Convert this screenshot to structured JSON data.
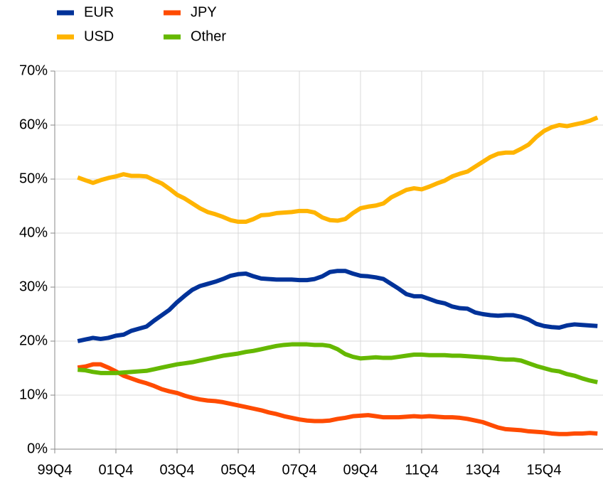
{
  "chart_data": {
    "type": "line",
    "categories": [
      "99Q4",
      null,
      null,
      null,
      null,
      null,
      null,
      null,
      "01Q4",
      null,
      null,
      null,
      null,
      null,
      null,
      null,
      "03Q4",
      null,
      null,
      null,
      null,
      null,
      null,
      null,
      "05Q4",
      null,
      null,
      null,
      null,
      null,
      null,
      null,
      "07Q4",
      null,
      null,
      null,
      null,
      null,
      null,
      null,
      "09Q4",
      null,
      null,
      null,
      null,
      null,
      null,
      null,
      "11Q4",
      null,
      null,
      null,
      null,
      null,
      null,
      null,
      "13Q4",
      null,
      null,
      null,
      null,
      null,
      null,
      null,
      "15Q4",
      null,
      null,
      null,
      null,
      null,
      null,
      null
    ],
    "series": [
      {
        "name": "EUR",
        "color": "#003299",
        "values": [
          null,
          null,
          null,
          20,
          20.3,
          20.6,
          20.4,
          20.6,
          21,
          21.2,
          21.9,
          22.3,
          22.7,
          23.8,
          24.8,
          25.8,
          27.2,
          28.4,
          29.5,
          30.2,
          30.6,
          31,
          31.5,
          32.1,
          32.4,
          32.5,
          32,
          31.6,
          31.5,
          31.4,
          31.4,
          31.4,
          31.3,
          31.3,
          31.5,
          32,
          32.8,
          33,
          33,
          32.5,
          32.1,
          32,
          31.8,
          31.5,
          30.6,
          29.7,
          28.7,
          28.3,
          28.3,
          27.8,
          27.3,
          27,
          26.4,
          26.1,
          26,
          25.3,
          25,
          24.8,
          24.7,
          24.8,
          24.8,
          24.5,
          24,
          23.2,
          22.8,
          22.6,
          22.5,
          22.9,
          23.1,
          23,
          22.9,
          22.8
        ]
      },
      {
        "name": "USD",
        "color": "#ffb400",
        "values": [
          null,
          null,
          null,
          50.3,
          49.8,
          49.3,
          49.8,
          50.2,
          50.5,
          50.9,
          50.6,
          50.6,
          50.5,
          49.8,
          49.2,
          48.2,
          47.1,
          46.4,
          45.5,
          44.6,
          43.9,
          43.5,
          43,
          42.4,
          42.1,
          42.1,
          42.6,
          43.3,
          43.4,
          43.7,
          43.8,
          43.9,
          44.1,
          44.1,
          43.8,
          42.9,
          42.4,
          42.3,
          42.6,
          43.7,
          44.6,
          44.9,
          45.1,
          45.5,
          46.6,
          47.3,
          48,
          48.3,
          48.1,
          48.6,
          49.2,
          49.7,
          50.5,
          51,
          51.4,
          52.3,
          53.2,
          54.1,
          54.7,
          54.9,
          54.9,
          55.6,
          56.4,
          57.8,
          58.9,
          59.6,
          60,
          59.8,
          60.1,
          60.4,
          60.8,
          61.4
        ]
      },
      {
        "name": "JPY",
        "color": "#ff4b00",
        "values": [
          null,
          null,
          null,
          15.1,
          15.3,
          15.7,
          15.7,
          15.1,
          14.4,
          13.6,
          13.1,
          12.6,
          12.2,
          11.7,
          11.1,
          10.7,
          10.4,
          9.9,
          9.5,
          9.2,
          9,
          8.9,
          8.7,
          8.4,
          8.1,
          7.8,
          7.5,
          7.2,
          6.8,
          6.5,
          6.1,
          5.8,
          5.5,
          5.3,
          5.2,
          5.2,
          5.3,
          5.6,
          5.8,
          6.1,
          6.2,
          6.3,
          6.1,
          5.9,
          5.9,
          5.9,
          6,
          6.1,
          6,
          6.1,
          6,
          5.9,
          5.9,
          5.8,
          5.6,
          5.3,
          5,
          4.5,
          4,
          3.7,
          3.6,
          3.5,
          3.3,
          3.2,
          3.1,
          2.9,
          2.8,
          2.8,
          2.9,
          2.9,
          3,
          2.9
        ]
      },
      {
        "name": "Other",
        "color": "#65b800",
        "values": [
          null,
          null,
          null,
          14.7,
          14.6,
          14.3,
          14.1,
          14.1,
          14.1,
          14.2,
          14.3,
          14.4,
          14.5,
          14.8,
          15.1,
          15.4,
          15.7,
          15.9,
          16.1,
          16.4,
          16.7,
          17,
          17.3,
          17.5,
          17.7,
          18,
          18.2,
          18.5,
          18.8,
          19.1,
          19.3,
          19.4,
          19.4,
          19.4,
          19.3,
          19.3,
          19.1,
          18.5,
          17.6,
          17.1,
          16.8,
          16.9,
          17,
          16.9,
          16.9,
          17.1,
          17.3,
          17.5,
          17.5,
          17.4,
          17.4,
          17.4,
          17.3,
          17.3,
          17.2,
          17.1,
          17,
          16.9,
          16.7,
          16.6,
          16.6,
          16.4,
          15.9,
          15.4,
          15,
          14.6,
          14.4,
          13.9,
          13.6,
          13.1,
          12.7,
          12.4
        ]
      }
    ],
    "ylim": [
      0,
      70
    ],
    "yticks": [
      {
        "value": 0,
        "label": "0%"
      },
      {
        "value": 10,
        "label": "10%"
      },
      {
        "value": 20,
        "label": "20%"
      },
      {
        "value": 30,
        "label": "30%"
      },
      {
        "value": 40,
        "label": "40%"
      },
      {
        "value": 50,
        "label": "50%"
      },
      {
        "value": 60,
        "label": "60%"
      },
      {
        "value": 70,
        "label": "70%"
      }
    ],
    "grid": true,
    "legend": "top-left"
  }
}
